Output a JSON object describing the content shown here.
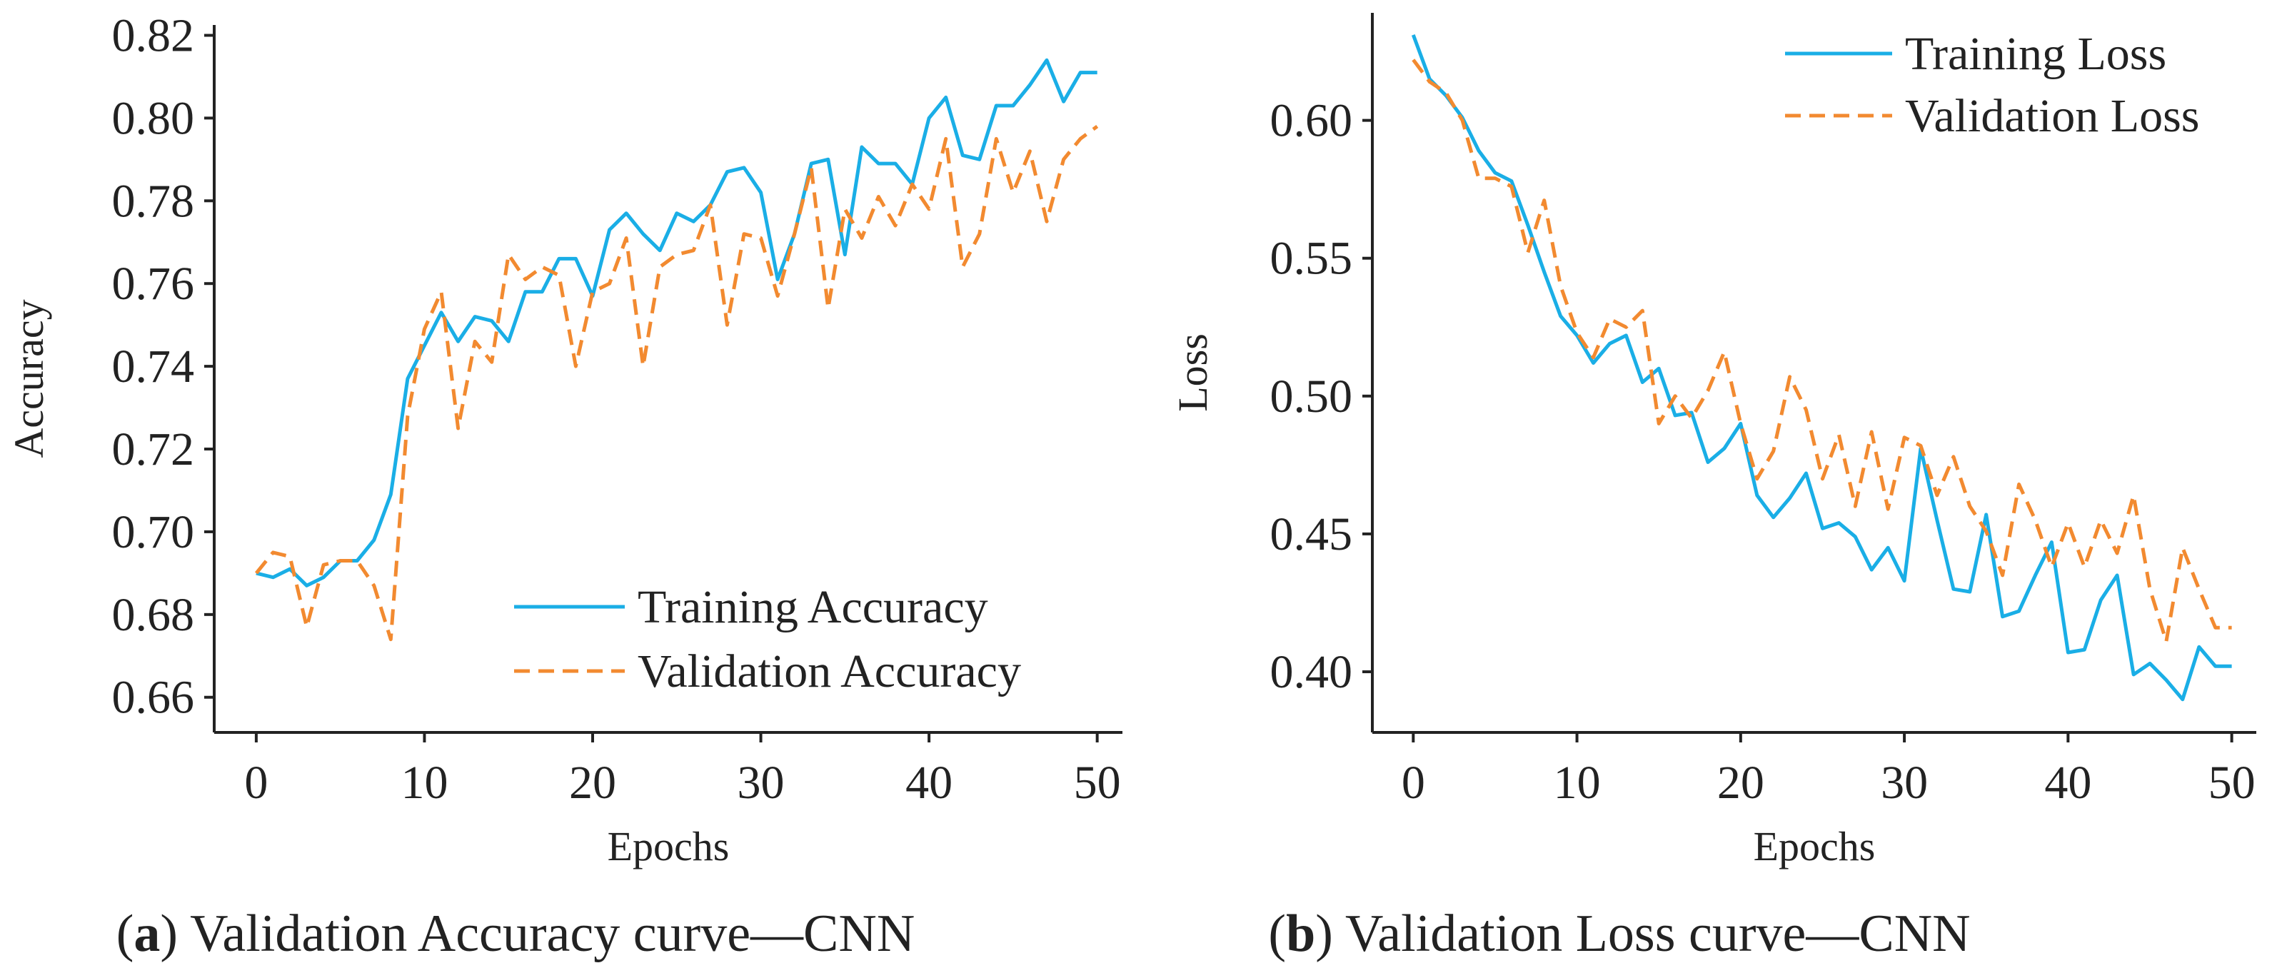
{
  "colors": {
    "training": "#1aaee6",
    "validation": "#f28a30",
    "axis": "#222222"
  },
  "chart_data": [
    {
      "type": "line",
      "caption_letter": "a",
      "caption_rest": ") Validation Accuracy curve—CNN",
      "title": "",
      "xlabel": "Epochs",
      "ylabel": "Accuracy",
      "xlim": [
        -2.5,
        51.5
      ],
      "ylim": [
        0.6515,
        0.8225
      ],
      "xticks": [
        0,
        10,
        20,
        30,
        40,
        50
      ],
      "yticks": [
        0.66,
        0.68,
        0.7,
        0.72,
        0.74,
        0.76,
        0.78,
        0.8,
        0.82
      ],
      "yticklabels": [
        "0.66",
        "0.68",
        "0.70",
        "0.72",
        "0.74",
        "0.76",
        "0.78",
        "0.80",
        "0.82"
      ],
      "legend_position": "bottom-right",
      "series": [
        {
          "name": "Training Accuracy",
          "style": "solid",
          "x": [
            0,
            1,
            2,
            3,
            4,
            5,
            6,
            7,
            8,
            9,
            10,
            11,
            12,
            13,
            14,
            15,
            16,
            17,
            18,
            19,
            20,
            21,
            22,
            23,
            24,
            25,
            26,
            27,
            28,
            29,
            30,
            31,
            32,
            33,
            34,
            35,
            36,
            37,
            38,
            39,
            40,
            41,
            42,
            43,
            44,
            45,
            46,
            47,
            48,
            49,
            50
          ],
          "y": [
            0.69,
            0.689,
            0.691,
            0.687,
            0.689,
            0.693,
            0.693,
            0.698,
            0.709,
            0.737,
            0.745,
            0.753,
            0.746,
            0.752,
            0.751,
            0.746,
            0.758,
            0.758,
            0.766,
            0.766,
            0.757,
            0.773,
            0.777,
            0.772,
            0.768,
            0.777,
            0.775,
            0.779,
            0.787,
            0.788,
            0.782,
            0.761,
            0.772,
            0.789,
            0.79,
            0.767,
            0.793,
            0.789,
            0.789,
            0.784,
            0.8,
            0.805,
            0.791,
            0.79,
            0.803,
            0.803,
            0.808,
            0.814,
            0.804,
            0.811,
            0.811
          ]
        },
        {
          "name": "Validation Accuracy",
          "style": "dashed",
          "x": [
            0,
            1,
            2,
            3,
            4,
            5,
            6,
            7,
            8,
            9,
            10,
            11,
            12,
            13,
            14,
            15,
            16,
            17,
            18,
            19,
            20,
            21,
            22,
            23,
            24,
            25,
            26,
            27,
            28,
            29,
            30,
            31,
            32,
            33,
            34,
            35,
            36,
            37,
            38,
            39,
            40,
            41,
            42,
            43,
            44,
            45,
            46,
            47,
            48,
            49,
            50
          ],
          "y": [
            0.69,
            0.695,
            0.694,
            0.677,
            0.692,
            0.693,
            0.693,
            0.687,
            0.674,
            0.728,
            0.749,
            0.758,
            0.725,
            0.746,
            0.741,
            0.767,
            0.761,
            0.764,
            0.762,
            0.74,
            0.758,
            0.76,
            0.771,
            0.74,
            0.764,
            0.767,
            0.768,
            0.779,
            0.75,
            0.772,
            0.771,
            0.757,
            0.772,
            0.788,
            0.754,
            0.778,
            0.771,
            0.781,
            0.774,
            0.784,
            0.778,
            0.795,
            0.764,
            0.772,
            0.795,
            0.782,
            0.792,
            0.775,
            0.79,
            0.795,
            0.798
          ]
        }
      ]
    },
    {
      "type": "line",
      "caption_letter": "b",
      "caption_rest": ") Validation Loss curve—CNN",
      "title": "",
      "xlabel": "Epochs",
      "ylabel": "Loss",
      "xlim": [
        -2.5,
        51.5
      ],
      "ylim": [
        0.378,
        0.639
      ],
      "xticks": [
        0,
        10,
        20,
        30,
        40,
        50
      ],
      "yticks": [
        0.4,
        0.45,
        0.5,
        0.55,
        0.6
      ],
      "yticklabels": [
        "0.40",
        "0.45",
        "0.50",
        "0.55",
        "0.60"
      ],
      "legend_position": "top-right",
      "series": [
        {
          "name": "Training Loss",
          "style": "solid",
          "x": [
            0,
            1,
            2,
            3,
            4,
            5,
            6,
            7,
            8,
            9,
            10,
            11,
            12,
            13,
            14,
            15,
            16,
            17,
            18,
            19,
            20,
            21,
            22,
            23,
            24,
            25,
            26,
            27,
            28,
            29,
            30,
            31,
            32,
            33,
            34,
            35,
            36,
            37,
            38,
            39,
            40,
            41,
            42,
            43,
            44,
            45,
            46,
            47,
            48,
            49,
            50
          ],
          "y": [
            0.631,
            0.615,
            0.609,
            0.601,
            0.589,
            0.581,
            0.578,
            0.562,
            0.545,
            0.529,
            0.522,
            0.512,
            0.519,
            0.522,
            0.505,
            0.51,
            0.493,
            0.494,
            0.476,
            0.481,
            0.49,
            0.464,
            0.456,
            0.463,
            0.472,
            0.452,
            0.454,
            0.449,
            0.437,
            0.445,
            0.433,
            0.481,
            0.455,
            0.43,
            0.429,
            0.457,
            0.42,
            0.422,
            0.435,
            0.447,
            0.407,
            0.408,
            0.426,
            0.435,
            0.399,
            0.403,
            0.397,
            0.39,
            0.409,
            0.402,
            0.402
          ]
        },
        {
          "name": "Validation Loss",
          "style": "dashed",
          "x": [
            0,
            1,
            2,
            3,
            4,
            5,
            6,
            7,
            8,
            9,
            10,
            11,
            12,
            13,
            14,
            15,
            16,
            17,
            18,
            19,
            20,
            21,
            22,
            23,
            24,
            25,
            26,
            27,
            28,
            29,
            30,
            31,
            32,
            33,
            34,
            35,
            36,
            37,
            38,
            39,
            40,
            41,
            42,
            43,
            44,
            45,
            46,
            47,
            48,
            49,
            50
          ],
          "y": [
            0.622,
            0.614,
            0.61,
            0.6,
            0.579,
            0.579,
            0.576,
            0.552,
            0.571,
            0.54,
            0.523,
            0.514,
            0.528,
            0.525,
            0.531,
            0.49,
            0.5,
            0.492,
            0.502,
            0.516,
            0.49,
            0.47,
            0.48,
            0.507,
            0.495,
            0.47,
            0.486,
            0.46,
            0.487,
            0.459,
            0.485,
            0.482,
            0.464,
            0.478,
            0.46,
            0.451,
            0.435,
            0.468,
            0.455,
            0.438,
            0.454,
            0.438,
            0.455,
            0.443,
            0.464,
            0.43,
            0.411,
            0.445,
            0.43,
            0.416,
            0.416
          ]
        }
      ]
    }
  ]
}
